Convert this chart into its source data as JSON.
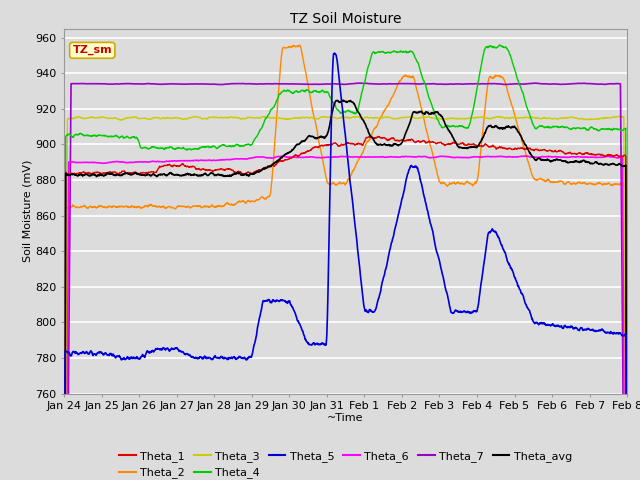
{
  "title": "TZ Soil Moisture",
  "xlabel": "~Time",
  "ylabel": "Soil Moisture (mV)",
  "ylim": [
    760,
    965
  ],
  "yticks": [
    760,
    780,
    800,
    820,
    840,
    860,
    880,
    900,
    920,
    940,
    960
  ],
  "bg_color": "#DCDCDC",
  "legend_label": "TZ_sm",
  "x_labels": [
    "Jan 24",
    "Jan 25",
    "Jan 26",
    "Jan 27",
    "Jan 28",
    "Jan 29",
    "Jan 30",
    "Jan 31",
    "Feb 1",
    "Feb 2",
    "Feb 3",
    "Feb 4",
    "Feb 5",
    "Feb 6",
    "Feb 7",
    "Feb 8"
  ],
  "colors": {
    "Theta_1": "#DD0000",
    "Theta_2": "#FF8800",
    "Theta_3": "#CCCC00",
    "Theta_4": "#00CC00",
    "Theta_5": "#0000DD",
    "Theta_6": "#FF00FF",
    "Theta_7": "#9900CC",
    "Theta_avg": "#000000"
  }
}
